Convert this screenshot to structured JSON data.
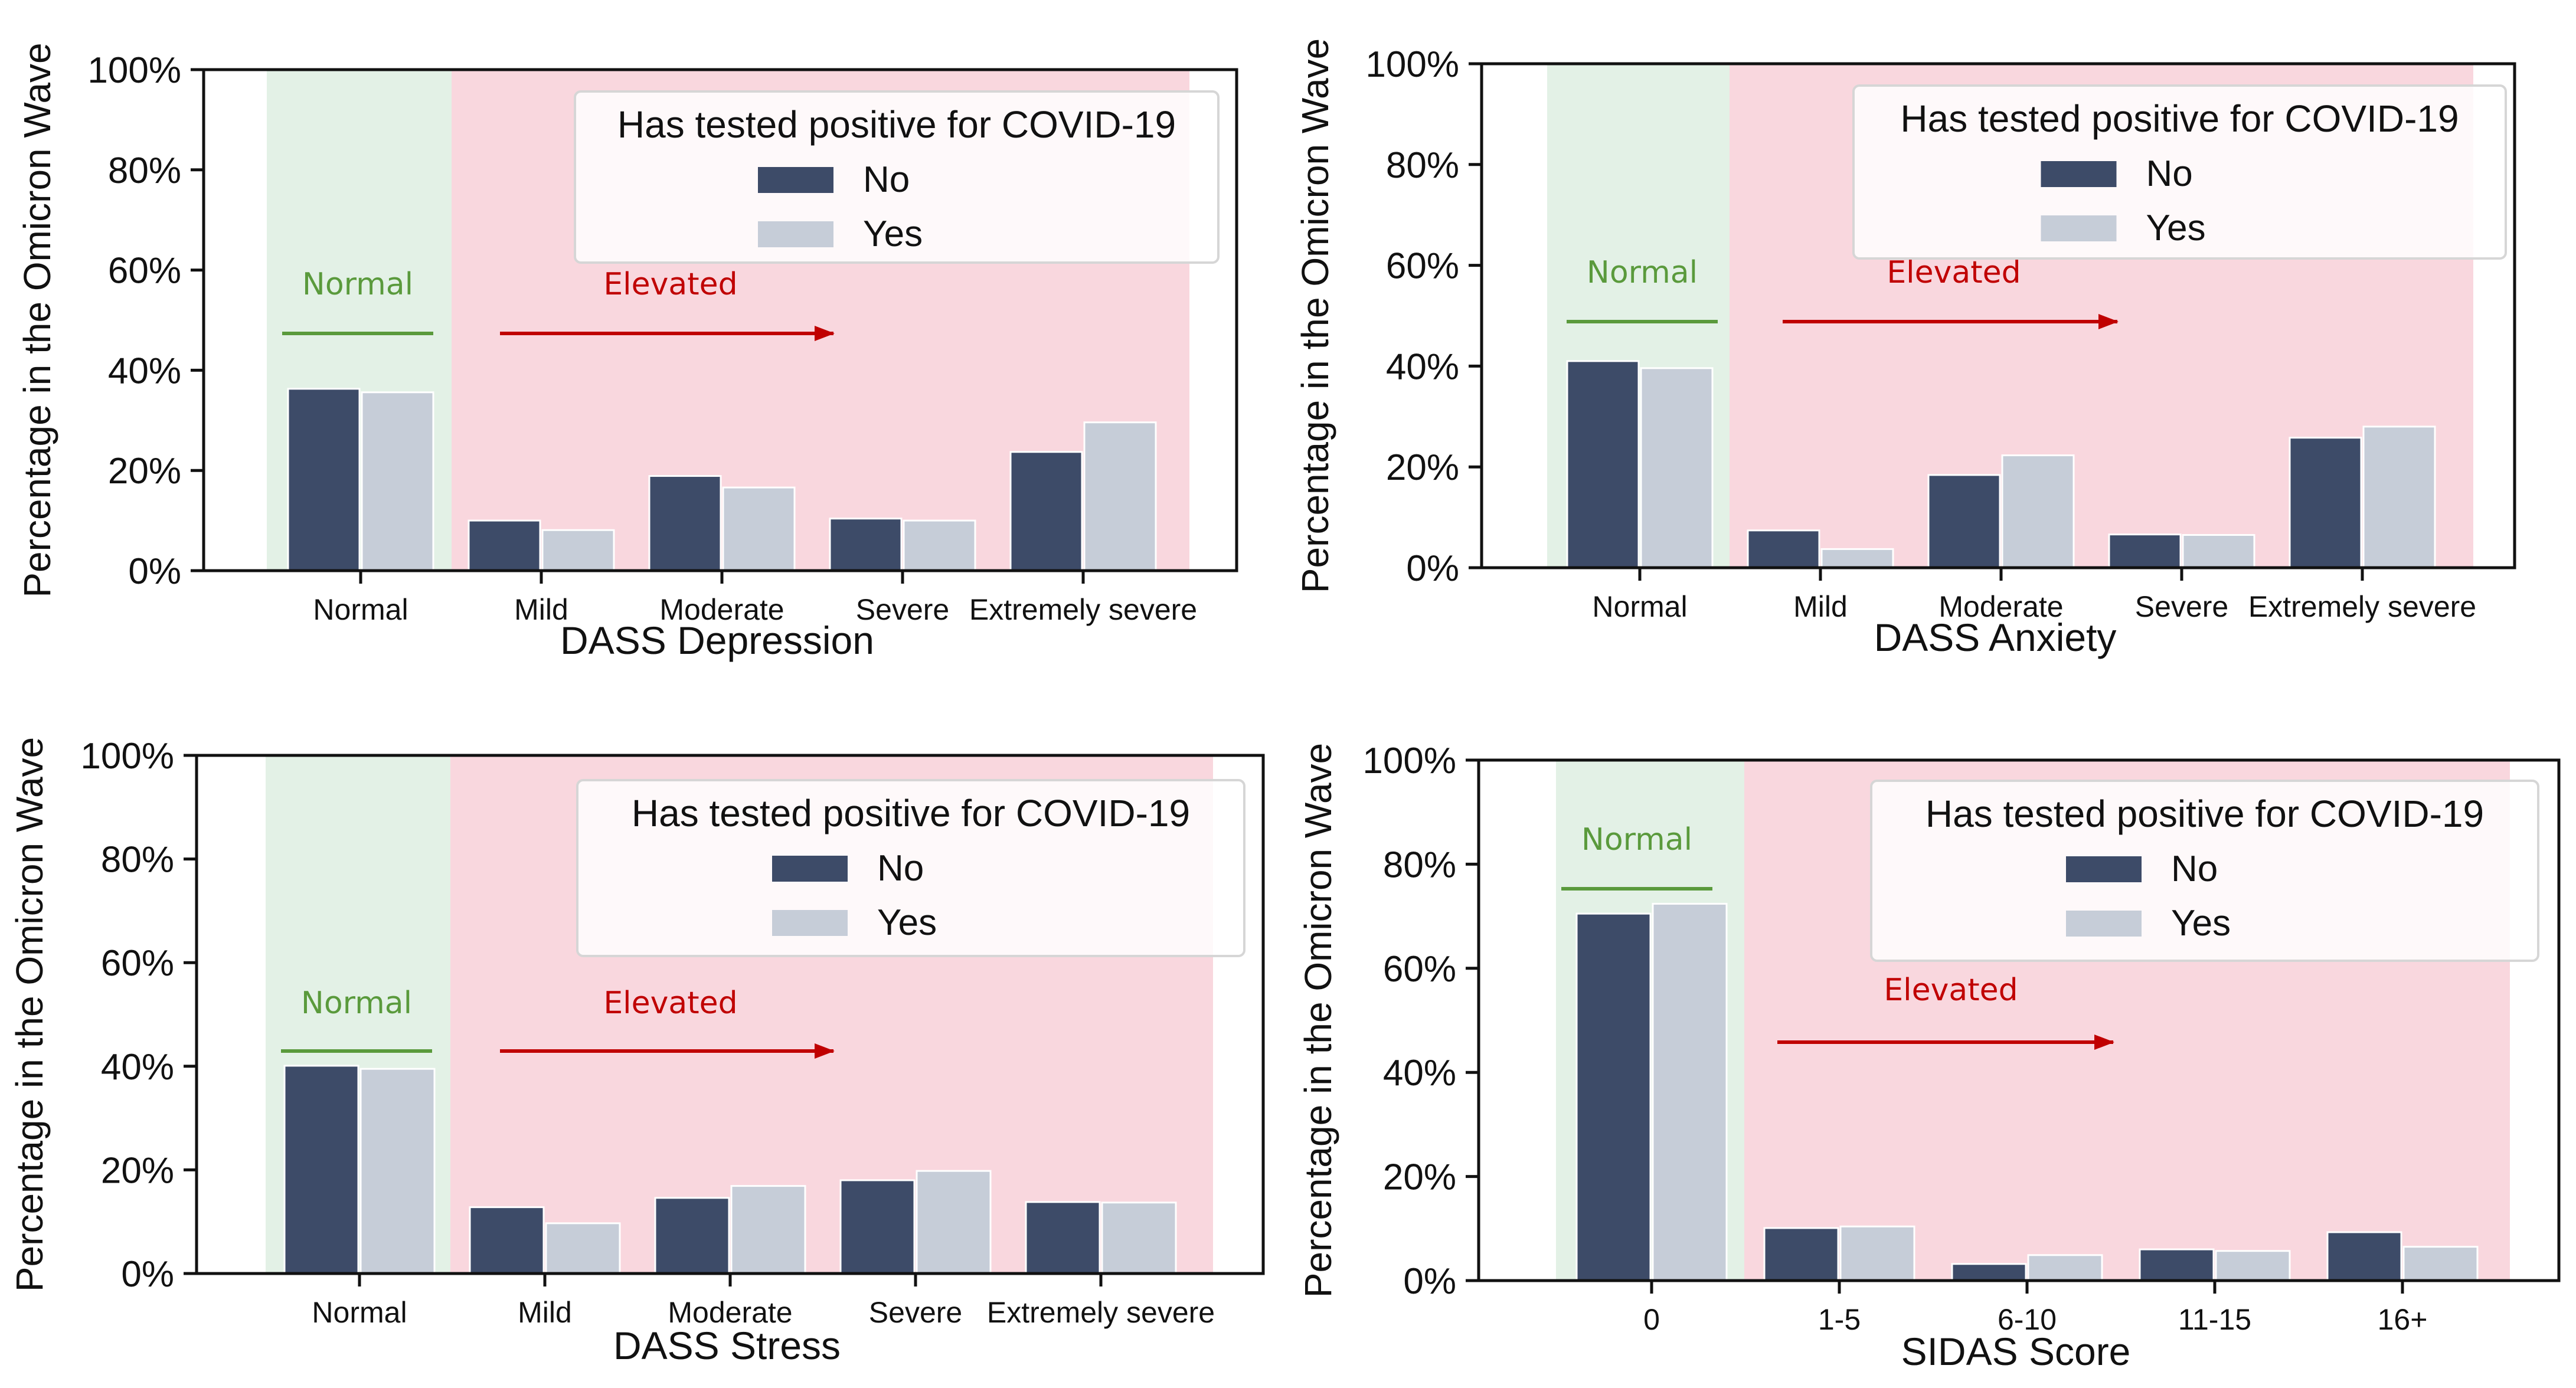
{
  "chart_data": [
    {
      "type": "bar",
      "title": "",
      "xlabel": "DASS Depression",
      "ylabel": "Percentage in the Omicron Wave",
      "ylim": [
        0,
        100
      ],
      "yticks": [
        "0%",
        "20%",
        "40%",
        "60%",
        "80%",
        "100%"
      ],
      "categories": [
        "Normal",
        "Mild",
        "Moderate",
        "Severe",
        "Extremely severe"
      ],
      "series": [
        {
          "name": "No",
          "values": [
            36.3,
            10.0,
            18.9,
            10.4,
            23.7
          ]
        },
        {
          "name": "Yes",
          "values": [
            35.6,
            8.1,
            16.6,
            10.0,
            29.6
          ]
        }
      ],
      "legend": {
        "title": "Has tested positive for COVID-19",
        "entries": [
          "No",
          "Yes"
        ],
        "placement": "top-right"
      },
      "annotations": {
        "normal": "Normal",
        "elevated": "Elevated"
      }
    },
    {
      "type": "bar",
      "title": "",
      "xlabel": "DASS Anxiety",
      "ylabel": "Percentage in the Omicron Wave",
      "ylim": [
        0,
        100
      ],
      "yticks": [
        "0%",
        "20%",
        "40%",
        "60%",
        "80%",
        "100%"
      ],
      "categories": [
        "Normal",
        "Mild",
        "Moderate",
        "Severe",
        "Extremely severe"
      ],
      "series": [
        {
          "name": "No",
          "values": [
            41.0,
            7.4,
            18.4,
            6.6,
            25.8
          ]
        },
        {
          "name": "Yes",
          "values": [
            39.6,
            3.7,
            22.3,
            6.5,
            28.0
          ]
        }
      ],
      "legend": {
        "title": "Has tested positive for COVID-19",
        "entries": [
          "No",
          "Yes"
        ],
        "placement": "top-right"
      },
      "annotations": {
        "normal": "Normal",
        "elevated": "Elevated"
      }
    },
    {
      "type": "bar",
      "title": "",
      "xlabel": "DASS Stress",
      "ylabel": "Percentage in the Omicron Wave",
      "ylim": [
        0,
        100
      ],
      "yticks": [
        "0%",
        "20%",
        "40%",
        "60%",
        "80%",
        "100%"
      ],
      "categories": [
        "Normal",
        "Mild",
        "Moderate",
        "Severe",
        "Extremely severe"
      ],
      "series": [
        {
          "name": "No",
          "values": [
            40.1,
            12.8,
            14.6,
            18.0,
            13.8
          ]
        },
        {
          "name": "Yes",
          "values": [
            39.5,
            9.7,
            16.9,
            19.8,
            13.7
          ]
        }
      ],
      "legend": {
        "title": "Has tested positive for COVID-19",
        "entries": [
          "No",
          "Yes"
        ],
        "placement": "top-right"
      },
      "annotations": {
        "normal": "Normal",
        "elevated": "Elevated"
      }
    },
    {
      "type": "bar",
      "title": "",
      "xlabel": "SIDAS Score",
      "ylabel": "Percentage in the Omicron Wave",
      "ylim": [
        0,
        100
      ],
      "yticks": [
        "0%",
        "20%",
        "40%",
        "60%",
        "80%",
        "100%"
      ],
      "categories": [
        "0",
        "1-5",
        "6-10",
        "11-15",
        "16+"
      ],
      "series": [
        {
          "name": "No",
          "values": [
            70.5,
            10.1,
            3.2,
            6.0,
            9.3
          ]
        },
        {
          "name": "Yes",
          "values": [
            72.4,
            10.4,
            4.9,
            5.7,
            6.5
          ]
        }
      ],
      "legend": {
        "title": "Has tested positive for COVID-19",
        "entries": [
          "No",
          "Yes"
        ],
        "placement": "top-right"
      },
      "annotations": {
        "normal": "Normal",
        "elevated": "Elevated"
      }
    }
  ],
  "colors": {
    "no": "#3d4b68",
    "yes": "#c6cdd8",
    "normal_band": "#e3f1e6",
    "elevated_band": "#f9d7de",
    "normal_text": "#5a9a3c",
    "elevated_text": "#c00000"
  }
}
